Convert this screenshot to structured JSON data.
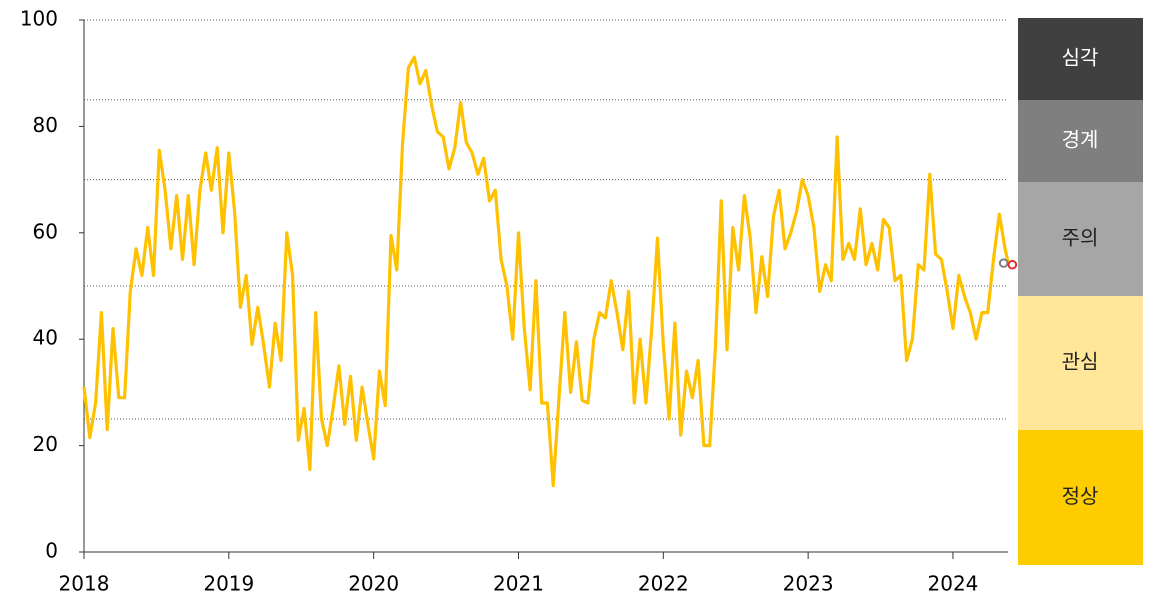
{
  "chart_data": {
    "type": "line",
    "x": [
      2018.0,
      2018.04,
      2018.08,
      2018.12,
      2018.16,
      2018.2,
      2018.24,
      2018.28,
      2018.32,
      2018.36,
      2018.4,
      2018.44,
      2018.48,
      2018.52,
      2018.56,
      2018.6,
      2018.64,
      2018.68,
      2018.72,
      2018.76,
      2018.8,
      2018.84,
      2018.88,
      2018.92,
      2018.96,
      2019.0,
      2019.04,
      2019.08,
      2019.12,
      2019.16,
      2019.2,
      2019.24,
      2019.28,
      2019.32,
      2019.36,
      2019.4,
      2019.44,
      2019.48,
      2019.52,
      2019.56,
      2019.6,
      2019.64,
      2019.68,
      2019.72,
      2019.76,
      2019.8,
      2019.84,
      2019.88,
      2019.92,
      2019.96,
      2020.0,
      2020.04,
      2020.08,
      2020.12,
      2020.16,
      2020.2,
      2020.24,
      2020.28,
      2020.32,
      2020.36,
      2020.4,
      2020.44,
      2020.48,
      2020.52,
      2020.56,
      2020.6,
      2020.64,
      2020.68,
      2020.72,
      2020.76,
      2020.8,
      2020.84,
      2020.88,
      2020.92,
      2020.96,
      2021.0,
      2021.04,
      2021.08,
      2021.12,
      2021.16,
      2021.2,
      2021.24,
      2021.28,
      2021.32,
      2021.36,
      2021.4,
      2021.44,
      2021.48,
      2021.52,
      2021.56,
      2021.6,
      2021.64,
      2021.68,
      2021.72,
      2021.76,
      2021.8,
      2021.84,
      2021.88,
      2021.92,
      2021.96,
      2022.0,
      2022.04,
      2022.08,
      2022.12,
      2022.16,
      2022.2,
      2022.24,
      2022.28,
      2022.32,
      2022.36,
      2022.4,
      2022.44,
      2022.48,
      2022.52,
      2022.56,
      2022.6,
      2022.64,
      2022.68,
      2022.72,
      2022.76,
      2022.8,
      2022.84,
      2022.88,
      2022.92,
      2022.96,
      2023.0,
      2023.04,
      2023.08,
      2023.12,
      2023.16,
      2023.2,
      2023.24,
      2023.28,
      2023.32,
      2023.36,
      2023.4,
      2023.44,
      2023.48,
      2023.52,
      2023.56,
      2023.6,
      2023.64,
      2023.68,
      2023.72,
      2023.76,
      2023.8,
      2023.84,
      2023.88,
      2023.92,
      2023.96,
      2024.0,
      2024.04,
      2024.08,
      2024.12,
      2024.16,
      2024.2,
      2024.24,
      2024.28,
      2024.32,
      2024.36,
      2024.38
    ],
    "series": [
      {
        "color": "#ffc000",
        "values": [
          31,
          21.5,
          28,
          45,
          23,
          42,
          29,
          29,
          49,
          57,
          52,
          61,
          52,
          75.5,
          68,
          57,
          67,
          55,
          67,
          54,
          68,
          75,
          68,
          76,
          60,
          75,
          64,
          46,
          52,
          39,
          46,
          39,
          31,
          43,
          36,
          60,
          52,
          21,
          27,
          15.5,
          45,
          25,
          20,
          27,
          35,
          24,
          33,
          21,
          31,
          24,
          17.5,
          34,
          27.5,
          59.5,
          53,
          77,
          91,
          93,
          88,
          90.5,
          84,
          79,
          78,
          72,
          76,
          84.5,
          77,
          75,
          71,
          74,
          66,
          68,
          55,
          50,
          40,
          60,
          42,
          30.5,
          51,
          28,
          28,
          12.5,
          29,
          45,
          30,
          39.5,
          28.5,
          28,
          40,
          45,
          44,
          51,
          45,
          38,
          49,
          28,
          40,
          28,
          42,
          59,
          39,
          25,
          43,
          22,
          34,
          29,
          36,
          20,
          20,
          38.5,
          66,
          38,
          61,
          53,
          67,
          59,
          45,
          55.5,
          48,
          63,
          68,
          57,
          60,
          64,
          70,
          67,
          61,
          49,
          54,
          51,
          78,
          55,
          58,
          55,
          64.5,
          54,
          58,
          53,
          62.5,
          61,
          51,
          52,
          36,
          40,
          54,
          53,
          71,
          56,
          55,
          49,
          42,
          52,
          48,
          45,
          40,
          45,
          45,
          55,
          63.5,
          57,
          54.5
        ]
      }
    ],
    "end_points": [
      {
        "x": 2024.35,
        "value": 54.3,
        "color": "#808080"
      },
      {
        "x": 2024.41,
        "value": 54,
        "color": "#e03030"
      }
    ],
    "xlim": [
      2018,
      2024.38
    ],
    "xticks": [
      2018,
      2019,
      2020,
      2021,
      2022,
      2023,
      2024
    ],
    "ylim": [
      0,
      100
    ],
    "yticks": [
      0,
      20,
      40,
      60,
      80,
      100
    ],
    "thresholds": [
      85,
      70,
      50,
      25
    ],
    "levels": [
      {
        "label": "심각",
        "color": "#404040"
      },
      {
        "label": "경계",
        "color": "#7f7f7f"
      },
      {
        "label": "주의",
        "color": "#a6a6a6"
      },
      {
        "label": "관심",
        "color": "#ffe699"
      },
      {
        "label": "정상",
        "color": "#ffcc00"
      }
    ]
  }
}
